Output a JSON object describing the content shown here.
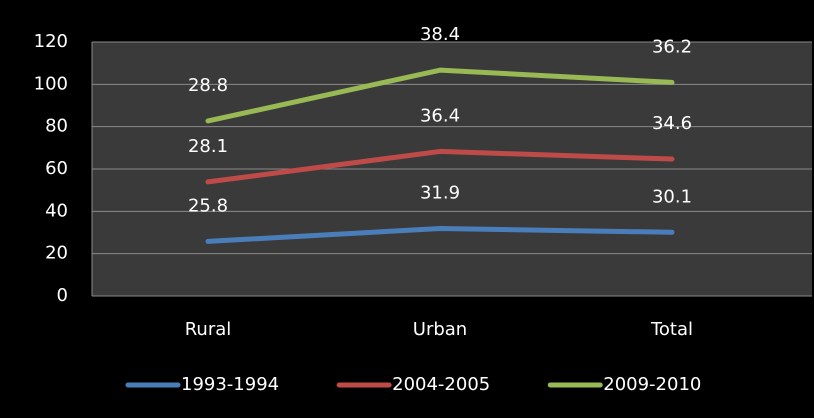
{
  "chart_data": {
    "type": "line",
    "stacked": true,
    "categories": [
      "Rural",
      "Urban",
      "Total"
    ],
    "series": [
      {
        "name": "1993-1994",
        "color": "#4a7ebb",
        "values": [
          25.8,
          31.9,
          30.1
        ]
      },
      {
        "name": "2004-2005",
        "color": "#be4b48",
        "values": [
          28.1,
          36.4,
          34.6
        ]
      },
      {
        "name": "2009-2010",
        "color": "#98b954",
        "values": [
          28.8,
          38.4,
          36.2
        ]
      }
    ],
    "ylim": [
      0,
      120
    ],
    "yticks": [
      0,
      20,
      40,
      60,
      80,
      100,
      120
    ],
    "grid": true,
    "legend": "bottom"
  }
}
